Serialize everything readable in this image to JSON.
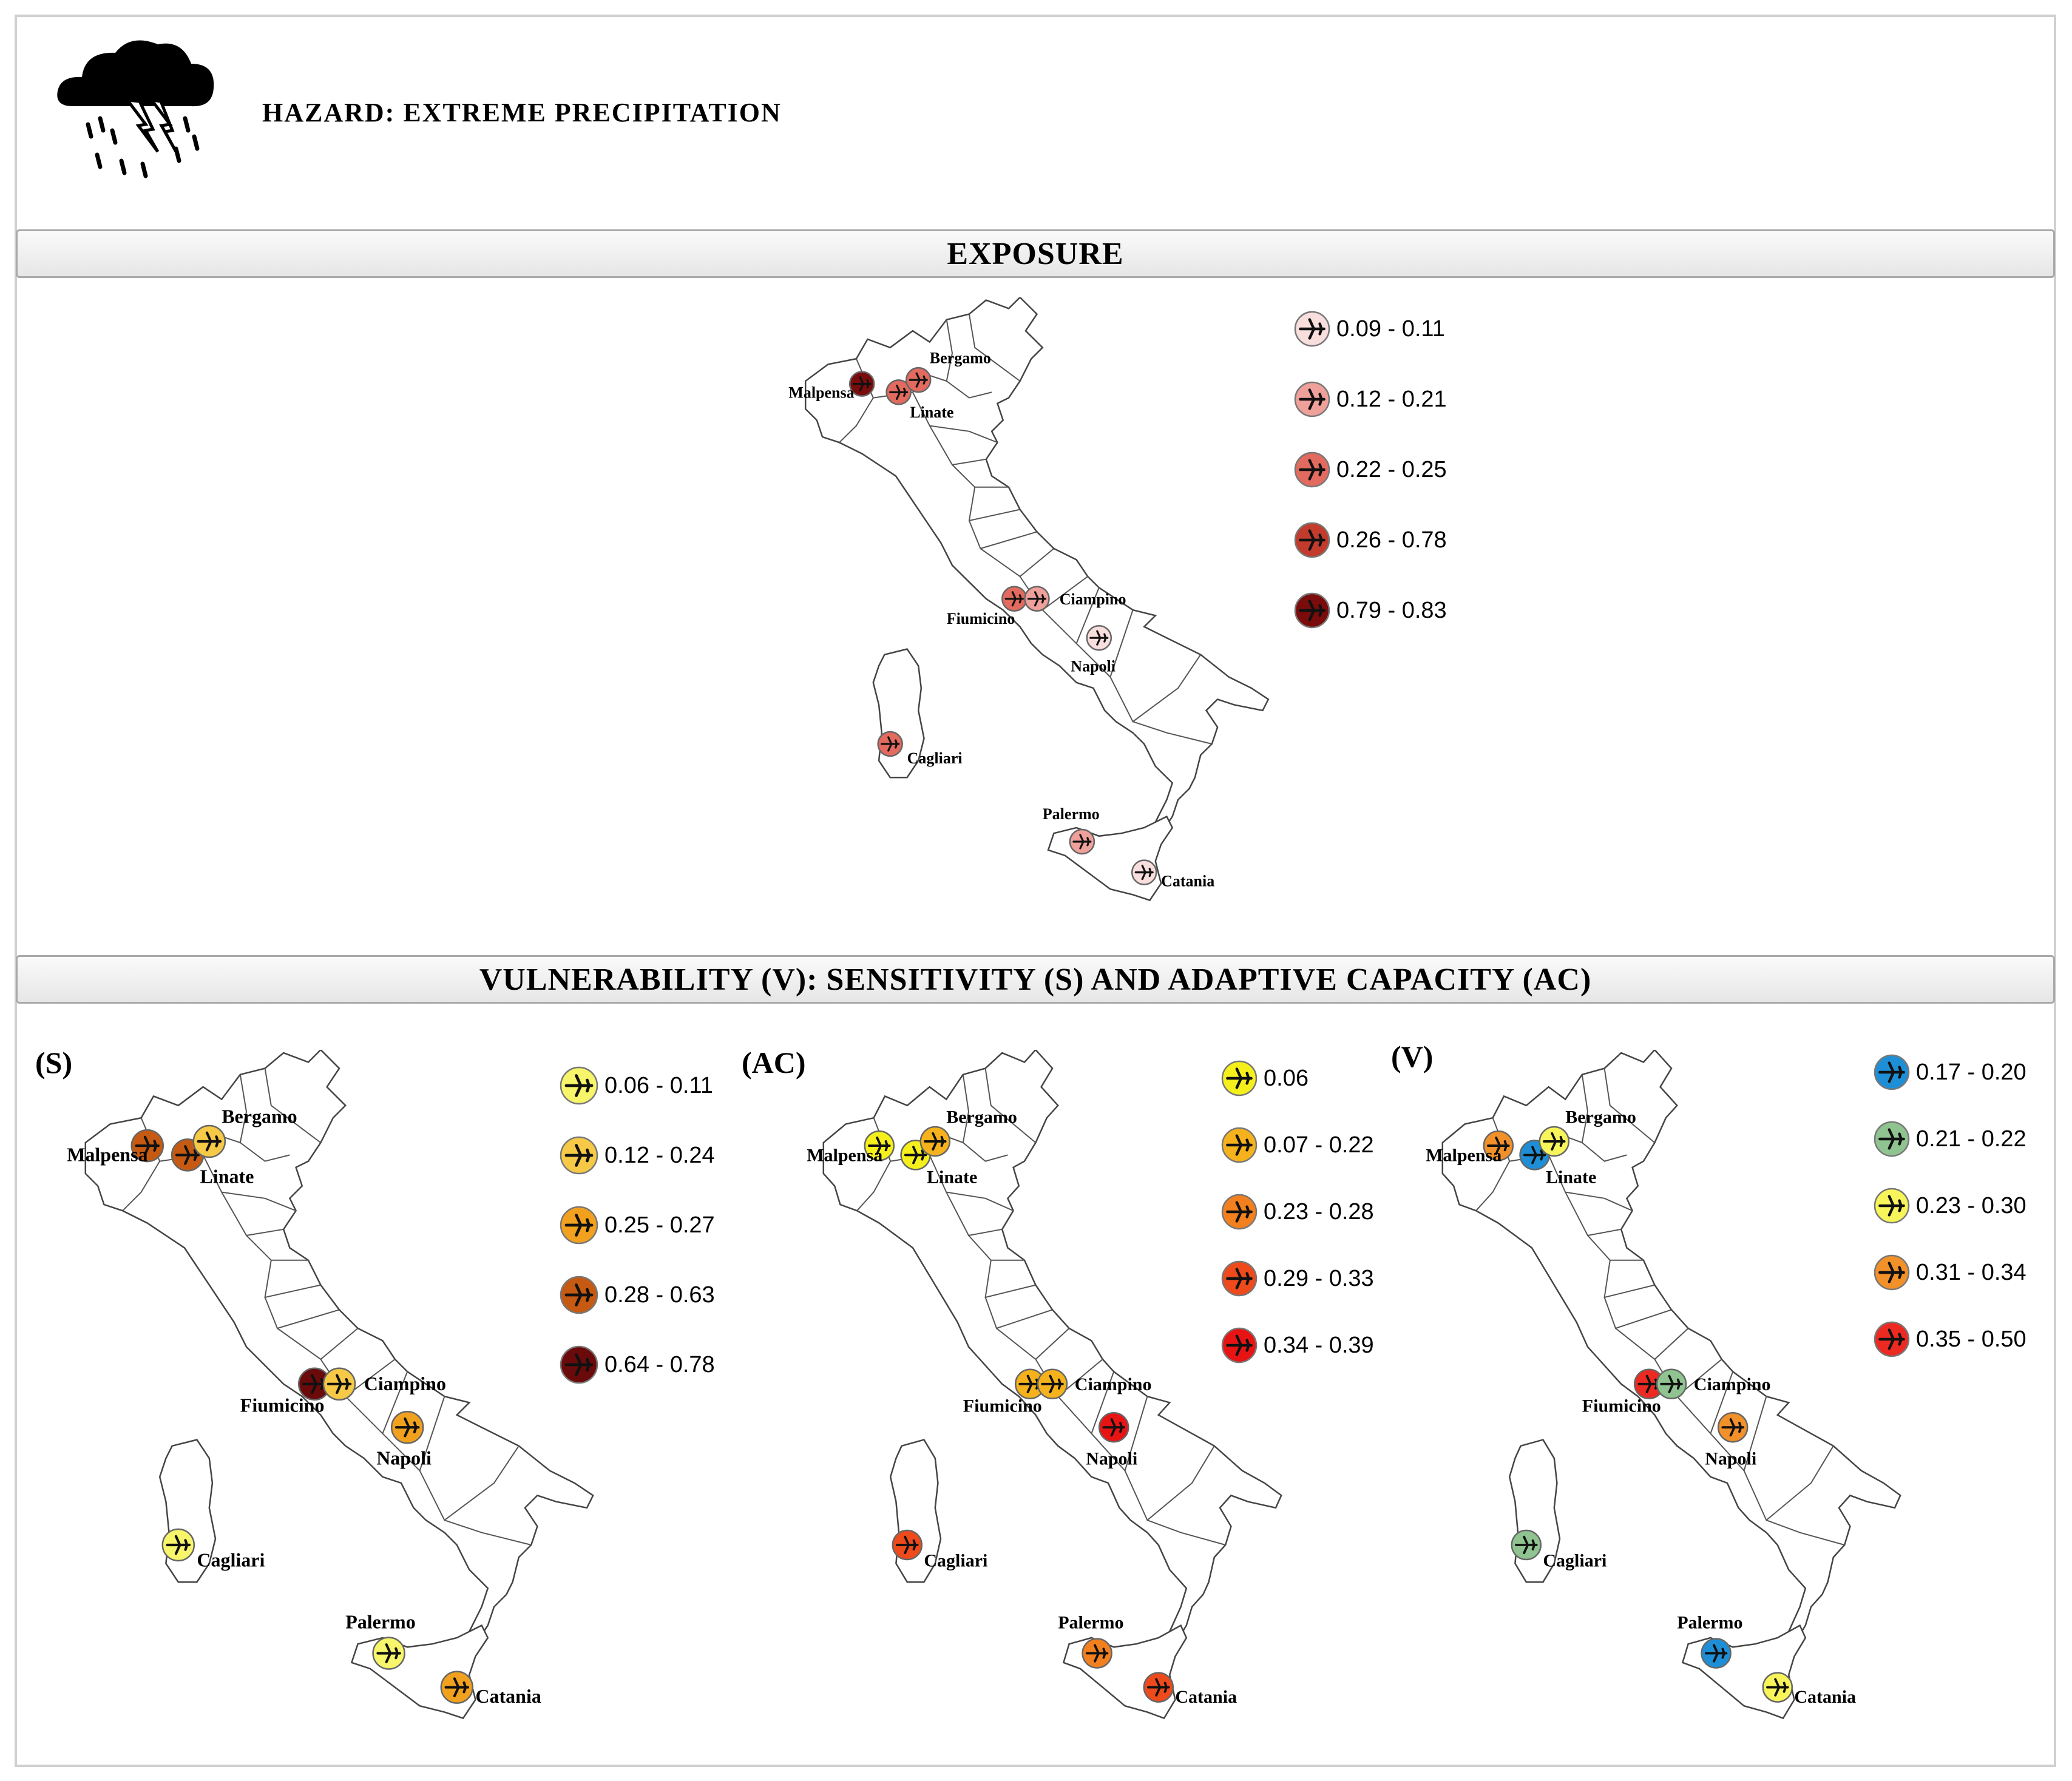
{
  "hazard_icon": "storm-cloud-icon",
  "hazard_title": "HAZARD: EXTREME PRECIPITATION",
  "exposure_banner": "EXPOSURE",
  "vulnerability_banner": "VULNERABILITY (V): SENSITIVITY (S) AND ADAPTIVE CAPACITY (AC)",
  "marker_icon": "airplane-icon",
  "airports": [
    "Malpensa",
    "Linate",
    "Bergamo",
    "Fiumicino",
    "Ciampino",
    "Napoli",
    "Cagliari",
    "Palermo",
    "Catania"
  ],
  "exposure": {
    "legend": [
      {
        "label": "0.09 - 0.11",
        "color": "#f9dede"
      },
      {
        "label": "0.12 - 0.21",
        "color": "#f0a09a"
      },
      {
        "label": "0.22 - 0.25",
        "color": "#e36a5e"
      },
      {
        "label": "0.26 - 0.78",
        "color": "#c23b2c"
      },
      {
        "label": "0.79 - 0.83",
        "color": "#7a0c0c"
      }
    ],
    "airport_class": {
      "Malpensa": 4,
      "Linate": 2,
      "Bergamo": 2,
      "Fiumicino": 2,
      "Ciampino": 1,
      "Napoli": 0,
      "Cagliari": 2,
      "Palermo": 1,
      "Catania": 0
    }
  },
  "sensitivity": {
    "tag": "(S)",
    "legend": [
      {
        "label": "0.06 - 0.11",
        "color": "#f7f56a"
      },
      {
        "label": "0.12 - 0.24",
        "color": "#f6c946"
      },
      {
        "label": "0.25 - 0.27",
        "color": "#f2a11e"
      },
      {
        "label": "0.28 - 0.63",
        "color": "#c65a12"
      },
      {
        "label": "0.64 - 0.78",
        "color": "#6b0a0a"
      }
    ],
    "airport_class": {
      "Malpensa": 3,
      "Linate": 3,
      "Bergamo": 1,
      "Fiumicino": 4,
      "Ciampino": 1,
      "Napoli": 2,
      "Cagliari": 0,
      "Palermo": 0,
      "Catania": 2
    }
  },
  "adaptive_capacity": {
    "tag": "(AC)",
    "legend": [
      {
        "label": "0.06",
        "color": "#f5f01c"
      },
      {
        "label": "0.07 - 0.22",
        "color": "#f5b21c"
      },
      {
        "label": "0.23 - 0.28",
        "color": "#f2801e"
      },
      {
        "label": "0.29 - 0.33",
        "color": "#ee4a1c"
      },
      {
        "label": "0.34 - 0.39",
        "color": "#e81414"
      }
    ],
    "airport_class": {
      "Malpensa": 0,
      "Linate": 0,
      "Bergamo": 1,
      "Fiumicino": 1,
      "Ciampino": 1,
      "Napoli": 4,
      "Cagliari": 3,
      "Palermo": 2,
      "Catania": 3
    }
  },
  "vulnerability": {
    "tag": "(V)",
    "legend": [
      {
        "label": "0.17 - 0.20",
        "color": "#1e8fd6"
      },
      {
        "label": "0.21 - 0.22",
        "color": "#8fc490"
      },
      {
        "label": "0.23 - 0.30",
        "color": "#f7f55a"
      },
      {
        "label": "0.31 - 0.34",
        "color": "#f2902a"
      },
      {
        "label": "0.35 - 0.50",
        "color": "#ec2a22"
      }
    ],
    "airport_class": {
      "Malpensa": 3,
      "Linate": 0,
      "Bergamo": 2,
      "Fiumicino": 4,
      "Ciampino": 1,
      "Napoli": 3,
      "Cagliari": 1,
      "Palermo": 0,
      "Catania": 2
    }
  }
}
